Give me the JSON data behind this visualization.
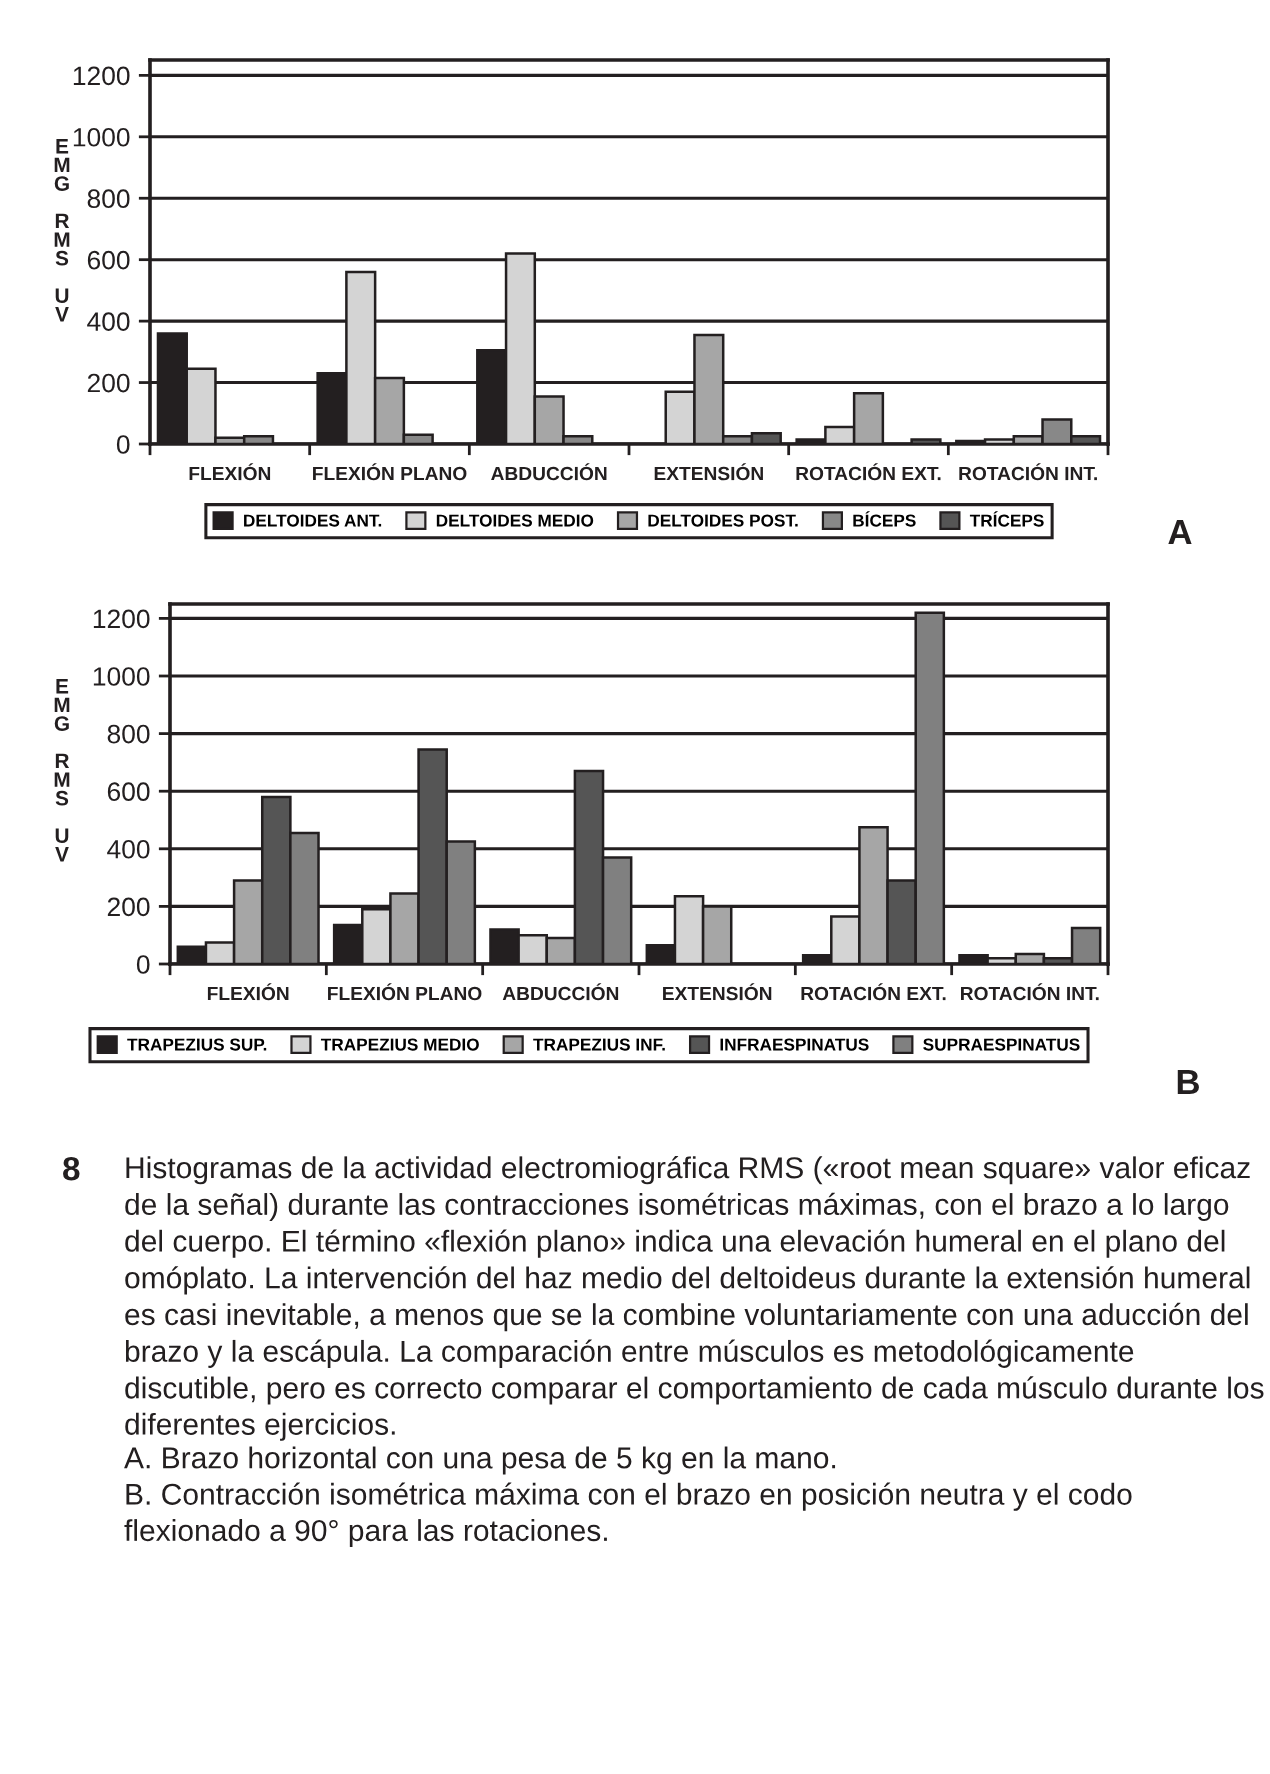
{
  "chart_data": [
    {
      "type": "bar",
      "categories": [
        "FLEXIÓN",
        "FLEXIÓN PLANO",
        "ABDUCCIÓN",
        "EXTENSIÓN",
        "ROTACIÓN EXT.",
        "ROTACIÓN INT."
      ],
      "ylabel": "EMG RMS UV",
      "ylim": [
        0,
        1250
      ],
      "yticks": [
        0,
        200,
        400,
        600,
        800,
        1000,
        1200
      ],
      "grid": "y",
      "legend": "bottom",
      "series": [
        {
          "name": "DELTOIDES ANT.",
          "color": "#231f20",
          "values": [
            360,
            230,
            305,
            null,
            15,
            10
          ]
        },
        {
          "name": "DELTOIDES MEDIO",
          "color": "#d4d4d4",
          "values": [
            245,
            560,
            620,
            170,
            55,
            15
          ]
        },
        {
          "name": "DELTOIDES POST.",
          "color": "#a6a6a6",
          "values": [
            20,
            215,
            155,
            355,
            165,
            25
          ]
        },
        {
          "name": "BÍCEPS",
          "color": "#888888",
          "values": [
            25,
            30,
            25,
            25,
            null,
            80
          ]
        },
        {
          "name": "TRÍCEPS",
          "color": "#555555",
          "values": [
            null,
            null,
            null,
            35,
            15,
            25
          ]
        }
      ],
      "annotations": [
        "A"
      ]
    },
    {
      "type": "bar",
      "categories": [
        "FLEXIÓN",
        "FLEXIÓN PLANO",
        "ABDUCCIÓN",
        "EXTENSIÓN",
        "ROTACIÓN EXT.",
        "ROTACIÓN INT."
      ],
      "ylabel": "EMG RMS UV",
      "ylim": [
        0,
        1250
      ],
      "yticks": [
        0,
        200,
        400,
        600,
        800,
        1000,
        1200
      ],
      "grid": "y",
      "legend": "bottom",
      "series": [
        {
          "name": "TRAPEZIUS SUP.",
          "color": "#231f20",
          "values": [
            60,
            135,
            120,
            65,
            30,
            30
          ]
        },
        {
          "name": "TRAPEZIUS MEDIO",
          "color": "#d4d4d4",
          "values": [
            75,
            190,
            100,
            235,
            165,
            20
          ]
        },
        {
          "name": "TRAPEZIUS INF.",
          "color": "#a6a6a6",
          "values": [
            290,
            245,
            90,
            200,
            475,
            35
          ]
        },
        {
          "name": "INFRAESPINATUS",
          "color": "#555555",
          "values": [
            580,
            745,
            670,
            null,
            290,
            20
          ]
        },
        {
          "name": "SUPRAESPINATUS",
          "color": "#808080",
          "values": [
            455,
            425,
            370,
            null,
            1220,
            125
          ]
        }
      ],
      "annotations": [
        "B",
        "8",
        "Histogramas de la actividad electromiográfica RMS («root mean square» valor eficaz de la señal) durante las contracciones isométricas máximas, con el brazo a lo largo del cuerpo. El término «flexión plano» indica una elevación humeral en el plano del omóplato. La intervención del haz medio del deltoideus durante la extensión humeral es casi inevitable, a menos que se la combine voluntariamente con una aducción del brazo y la escápula. La comparación entre músculos es metodológicamente discutible, pero es correcto comparar el comportamiento de cada músculo durante los diferentes ejercicios.",
        "A. Brazo horizontal con una pesa de 5 kg en la mano.",
        "B. Contracción isométrica máxima con el brazo en posición neutra y el codo flexionado a 90° para las rotaciones."
      ]
    }
  ]
}
